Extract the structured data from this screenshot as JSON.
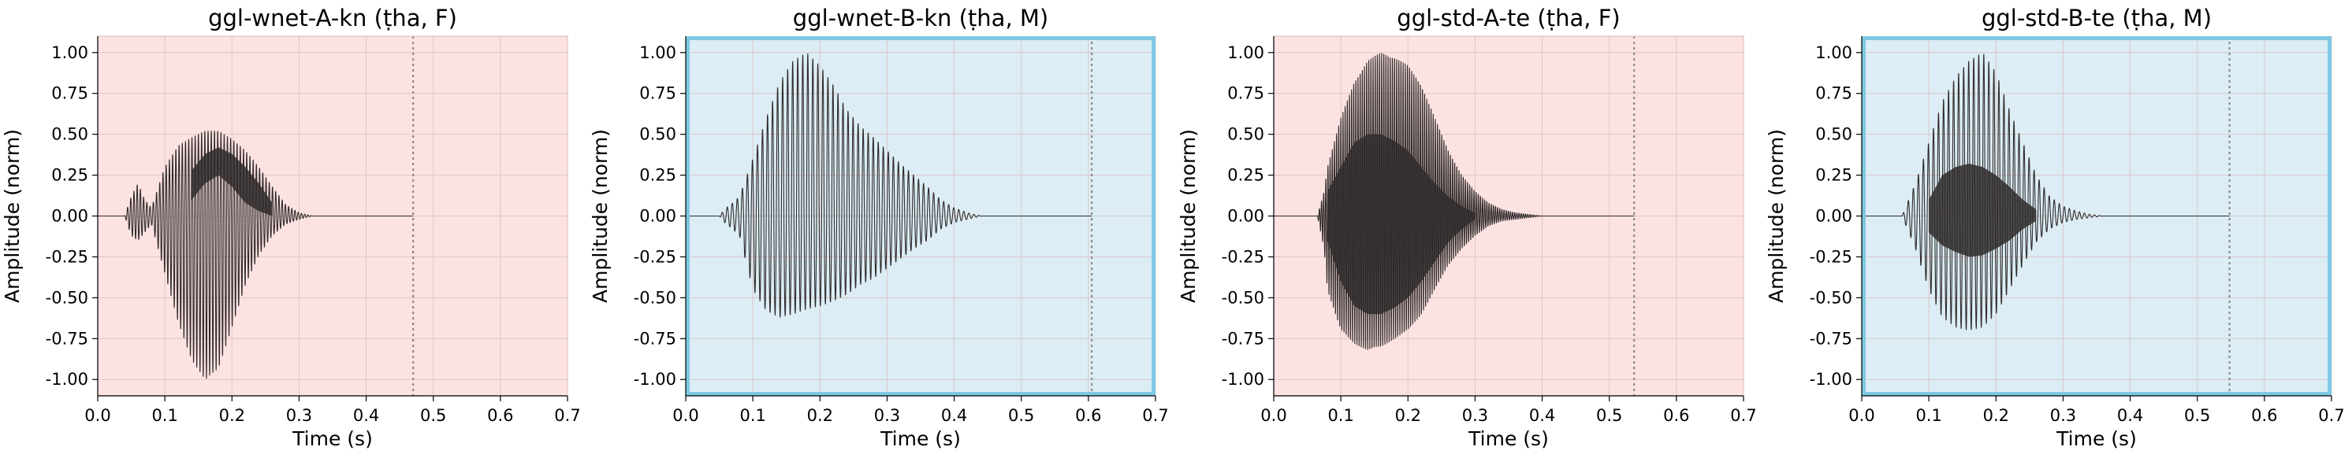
{
  "figure": {
    "background": "#ffffff"
  },
  "colors": {
    "female_bg": "#fde2e2",
    "male_bg": "#dcedf5",
    "male_border": "#7ec8e3",
    "grid": "#d8c8c8",
    "waveform": "#2f2a2a",
    "marker": "#8a8a8a"
  },
  "chart_data": [
    {
      "type": "line",
      "title": "ggl-wnet-A-kn (ṭha, F)",
      "xlabel": "Time (s)",
      "ylabel": "Amplitude (norm)",
      "xlim": [
        0,
        0.7
      ],
      "ylim": [
        -1.1,
        1.1
      ],
      "xticks": [
        "0.0",
        "0.1",
        "0.2",
        "0.3",
        "0.4",
        "0.5",
        "0.6",
        "0.7"
      ],
      "yticks": [
        "1.00",
        "0.75",
        "0.50",
        "0.25",
        "0.00",
        "-0.25",
        "-0.50",
        "-0.75",
        "-1.00"
      ],
      "grid": true,
      "gender": "F",
      "background": "#fde2e2",
      "highlight_border": false,
      "end_marker": 0.47,
      "signal_end": 0.47,
      "envelope": {
        "x": [
          0.0,
          0.04,
          0.05,
          0.06,
          0.07,
          0.08,
          0.1,
          0.12,
          0.14,
          0.16,
          0.18,
          0.2,
          0.22,
          0.24,
          0.26,
          0.28,
          0.3,
          0.32,
          0.47
        ],
        "upper": [
          0.0,
          0.0,
          0.12,
          0.2,
          0.1,
          0.05,
          0.3,
          0.43,
          0.48,
          0.52,
          0.52,
          0.47,
          0.4,
          0.3,
          0.18,
          0.07,
          0.02,
          0.0,
          0.0
        ],
        "lower": [
          0.0,
          0.0,
          -0.12,
          -0.15,
          -0.1,
          -0.05,
          -0.35,
          -0.65,
          -0.88,
          -1.0,
          -0.93,
          -0.68,
          -0.42,
          -0.24,
          -0.12,
          -0.05,
          -0.02,
          0.0,
          0.0
        ]
      },
      "inner_band": {
        "x": [
          0.14,
          0.16,
          0.18,
          0.2,
          0.22,
          0.24,
          0.26
        ],
        "upper": [
          0.28,
          0.38,
          0.42,
          0.38,
          0.3,
          0.2,
          0.08
        ],
        "lower": [
          0.1,
          0.2,
          0.25,
          0.18,
          0.08,
          0.03,
          0.0
        ]
      },
      "period": 0.0048
    },
    {
      "type": "line",
      "title": "ggl-wnet-B-kn (ṭha, M)",
      "xlabel": "Time (s)",
      "ylabel": "Amplitude (norm)",
      "xlim": [
        0,
        0.7
      ],
      "ylim": [
        -1.1,
        1.1
      ],
      "xticks": [
        "0.0",
        "0.1",
        "0.2",
        "0.3",
        "0.4",
        "0.5",
        "0.6",
        "0.7"
      ],
      "yticks": [
        "1.00",
        "0.75",
        "0.50",
        "0.25",
        "0.00",
        "-0.25",
        "-0.50",
        "-0.75",
        "-1.00"
      ],
      "grid": true,
      "gender": "M",
      "background": "#dcedf5",
      "highlight_border": true,
      "end_marker": 0.605,
      "signal_end": 0.605,
      "envelope": {
        "x": [
          0.0,
          0.05,
          0.06,
          0.07,
          0.08,
          0.1,
          0.12,
          0.14,
          0.16,
          0.18,
          0.2,
          0.22,
          0.24,
          0.26,
          0.28,
          0.3,
          0.32,
          0.34,
          0.36,
          0.38,
          0.4,
          0.42,
          0.44,
          0.605
        ],
        "upper": [
          0.0,
          0.0,
          0.05,
          0.08,
          0.12,
          0.35,
          0.6,
          0.82,
          0.95,
          1.0,
          0.92,
          0.8,
          0.65,
          0.55,
          0.48,
          0.4,
          0.32,
          0.25,
          0.18,
          0.1,
          0.05,
          0.02,
          0.0,
          0.0
        ],
        "lower": [
          0.0,
          0.0,
          -0.05,
          -0.08,
          -0.12,
          -0.45,
          -0.58,
          -0.62,
          -0.6,
          -0.57,
          -0.55,
          -0.52,
          -0.48,
          -0.42,
          -0.38,
          -0.32,
          -0.26,
          -0.2,
          -0.15,
          -0.08,
          -0.04,
          -0.02,
          0.0,
          0.0
        ]
      },
      "period": 0.0075
    },
    {
      "type": "line",
      "title": "ggl-std-A-te (ṭha, F)",
      "xlabel": "Time (s)",
      "ylabel": "Amplitude (norm)",
      "xlim": [
        0,
        0.7
      ],
      "ylim": [
        -1.1,
        1.1
      ],
      "xticks": [
        "0.0",
        "0.1",
        "0.2",
        "0.3",
        "0.4",
        "0.5",
        "0.6",
        "0.7"
      ],
      "yticks": [
        "1.00",
        "0.75",
        "0.50",
        "0.25",
        "0.00",
        "-0.25",
        "-0.50",
        "-0.75",
        "-1.00"
      ],
      "grid": true,
      "gender": "F",
      "background": "#fde2e2",
      "highlight_border": false,
      "end_marker": 0.537,
      "signal_end": 0.537,
      "envelope": {
        "x": [
          0.0,
          0.065,
          0.075,
          0.08,
          0.1,
          0.12,
          0.14,
          0.16,
          0.18,
          0.2,
          0.22,
          0.24,
          0.26,
          0.28,
          0.3,
          0.32,
          0.34,
          0.36,
          0.38,
          0.4,
          0.537
        ],
        "upper": [
          0.0,
          0.0,
          0.15,
          0.3,
          0.6,
          0.82,
          0.95,
          1.0,
          0.97,
          0.92,
          0.8,
          0.6,
          0.4,
          0.25,
          0.15,
          0.08,
          0.04,
          0.02,
          0.01,
          0.0,
          0.0
        ],
        "lower": [
          0.0,
          0.0,
          -0.2,
          -0.45,
          -0.7,
          -0.78,
          -0.82,
          -0.8,
          -0.75,
          -0.7,
          -0.6,
          -0.45,
          -0.3,
          -0.2,
          -0.12,
          -0.06,
          -0.03,
          -0.02,
          -0.01,
          0.0,
          0.0
        ]
      },
      "inner_band": {
        "x": [
          0.08,
          0.1,
          0.12,
          0.14,
          0.16,
          0.18,
          0.2,
          0.22,
          0.24,
          0.26,
          0.28,
          0.3
        ],
        "upper": [
          0.15,
          0.3,
          0.45,
          0.5,
          0.5,
          0.46,
          0.4,
          0.3,
          0.2,
          0.12,
          0.06,
          0.02
        ],
        "lower": [
          -0.15,
          -0.4,
          -0.55,
          -0.6,
          -0.6,
          -0.56,
          -0.5,
          -0.4,
          -0.28,
          -0.16,
          -0.08,
          -0.02
        ]
      },
      "period": 0.0032
    },
    {
      "type": "line",
      "title": "ggl-std-B-te (ṭha, M)",
      "xlabel": "Time (s)",
      "ylabel": "Amplitude (norm)",
      "xlim": [
        0,
        0.7
      ],
      "ylim": [
        -1.1,
        1.1
      ],
      "xticks": [
        "0.0",
        "0.1",
        "0.2",
        "0.3",
        "0.4",
        "0.5",
        "0.6",
        "0.7"
      ],
      "yticks": [
        "1.00",
        "0.75",
        "0.50",
        "0.25",
        "0.00",
        "-0.25",
        "-0.50",
        "-0.75",
        "-1.00"
      ],
      "grid": true,
      "gender": "M",
      "background": "#dcedf5",
      "highlight_border": true,
      "end_marker": 0.548,
      "signal_end": 0.548,
      "envelope": {
        "x": [
          0.0,
          0.06,
          0.07,
          0.08,
          0.1,
          0.12,
          0.14,
          0.16,
          0.18,
          0.2,
          0.22,
          0.24,
          0.26,
          0.28,
          0.3,
          0.32,
          0.34,
          0.36,
          0.548
        ],
        "upper": [
          0.0,
          0.0,
          0.1,
          0.2,
          0.45,
          0.7,
          0.85,
          0.95,
          1.0,
          0.88,
          0.65,
          0.45,
          0.25,
          0.12,
          0.06,
          0.03,
          0.01,
          0.0,
          0.0
        ],
        "lower": [
          0.0,
          0.0,
          -0.1,
          -0.2,
          -0.45,
          -0.62,
          -0.68,
          -0.7,
          -0.68,
          -0.6,
          -0.45,
          -0.3,
          -0.16,
          -0.08,
          -0.04,
          -0.02,
          -0.01,
          0.0,
          0.0
        ]
      },
      "inner_band": {
        "x": [
          0.1,
          0.12,
          0.14,
          0.16,
          0.18,
          0.2,
          0.22,
          0.24,
          0.26
        ],
        "upper": [
          0.1,
          0.25,
          0.3,
          0.32,
          0.3,
          0.25,
          0.18,
          0.1,
          0.04
        ],
        "lower": [
          -0.1,
          -0.18,
          -0.22,
          -0.25,
          -0.24,
          -0.2,
          -0.15,
          -0.08,
          -0.03
        ]
      },
      "period": 0.0075
    }
  ]
}
